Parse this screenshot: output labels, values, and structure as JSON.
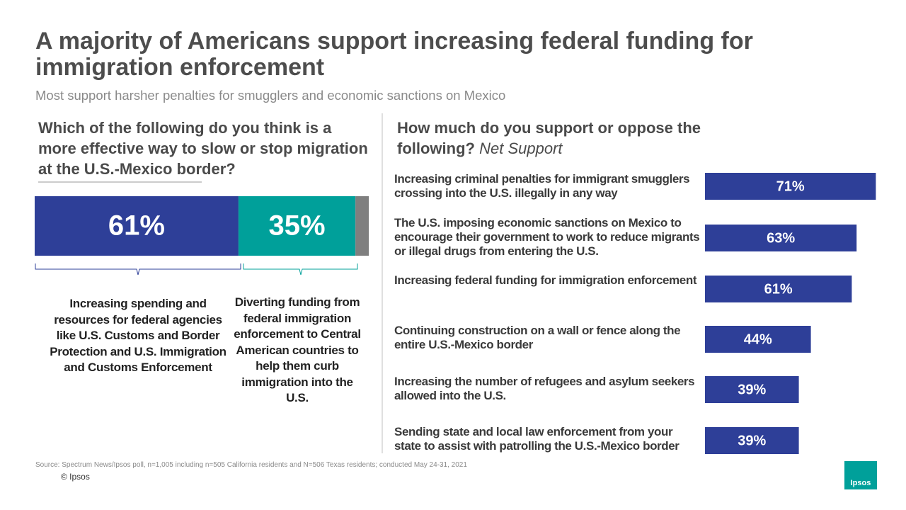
{
  "title": "A majority of Americans support increasing federal funding for immigration enforcement",
  "subtitle": "Most support harsher penalties for smugglers and economic sanctions on Mexico",
  "source": "Source: Spectrum News/Ipsos poll, n=1,005 including n=505 California residents and N=506 Texas residents; conducted May 24-31, 2021",
  "copyright": "© Ipsos",
  "logo": "Ipsos",
  "chart_data": [
    {
      "type": "stacked_bar",
      "orientation": "horizontal",
      "title": "Which of the following do you think is a more effective way to slow or stop migration at the U.S.-Mexico border?",
      "xlim": [
        0,
        100
      ],
      "series": [
        {
          "name": "Increasing spending and resources for federal agencies like U.S. Customs and Border Protection and U.S. Immigration and Customs Enforcement",
          "color": "#2e3f98",
          "values": [
            61
          ],
          "value_labels": [
            "61%"
          ]
        },
        {
          "name": "Diverting funding from federal immigration enforcement to Central American countries to help them curb immigration into the U.S.",
          "color": "#00a09a",
          "values": [
            35
          ],
          "value_labels": [
            "35%"
          ]
        },
        {
          "color": "#7f7f7f",
          "values": [
            4
          ]
        }
      ]
    },
    {
      "type": "bar",
      "orientation": "horizontal",
      "title": "How much do you support or oppose the following?",
      "subtitle": "Net Support",
      "xlim": [
        0,
        75
      ],
      "color": "#2e3f98",
      "categories": [
        "Increasing criminal penalties for immigrant smugglers crossing into the U.S. illegally in any way",
        "The U.S. imposing economic sanctions on Mexico to encourage their government to work to reduce migrants or illegal drugs from entering the U.S.",
        "Increasing federal funding for immigration enforcement",
        "Continuing construction on a wall or fence along the entire U.S.-Mexico border",
        "Increasing the number of refugees and asylum seekers allowed into the U.S.",
        "Sending state and local law enforcement from your state to assist with patrolling the U.S.-Mexico border"
      ],
      "values": [
        71,
        63,
        61,
        44,
        39,
        39
      ],
      "value_labels": [
        "71%",
        "63%",
        "61%",
        "44%",
        "39%",
        "39%"
      ]
    }
  ]
}
